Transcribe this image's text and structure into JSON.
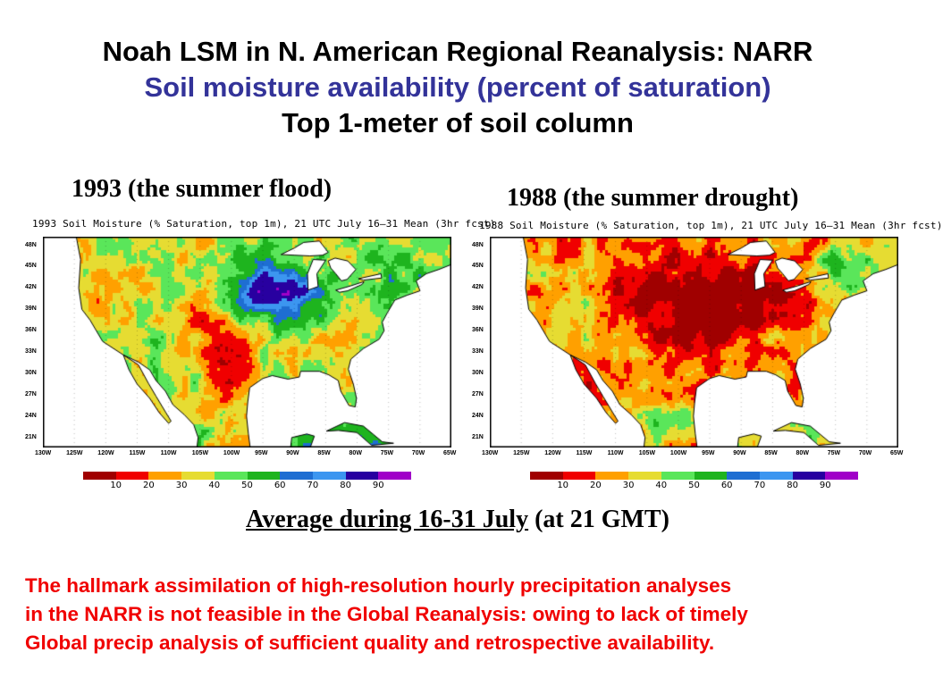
{
  "slide": {
    "title_line1": "Noah LSM in N. American Regional Reanalysis: NARR",
    "title_line2": "Soil moisture availability (percent of saturation)",
    "title_line3": "Top 1-meter of soil column",
    "title_line2_color": "#333399",
    "average_label": "Average during 16-31 July",
    "average_suffix": " (at 21 GMT)",
    "note_lines": [
      "The hallmark assimilation of high-resolution hourly precipitation analyses",
      "in the NARR is not feasible in the Global Reanalysis: owing to lack of timely",
      "Global precip analysis of sufficient quality and retrospective availability."
    ],
    "note_color": "#f00000"
  },
  "maps": [
    {
      "caption": "1993 (the summer flood)",
      "title": "1993 Soil Moisture (% Saturation, top 1m), 21 UTC July 16–31 Mean (3hr fcst)",
      "scenario": "flood"
    },
    {
      "caption": "1988 (the summer drought)",
      "title": "1988 Soil Moisture (% Saturation, top 1m), 21 UTC July 16–31 Mean (3hr fcst)",
      "scenario": "drought"
    }
  ],
  "axes": {
    "lat_ticks": [
      "48N",
      "45N",
      "42N",
      "39N",
      "36N",
      "33N",
      "30N",
      "27N",
      "24N",
      "21N"
    ],
    "lon_ticks": [
      "130W",
      "125W",
      "120W",
      "115W",
      "110W",
      "105W",
      "100W",
      "95W",
      "90W",
      "85W",
      "80W",
      "75W",
      "70W",
      "65W"
    ],
    "lat_range": [
      20,
      49
    ],
    "lon_range": [
      -130,
      -65
    ]
  },
  "colorbar": {
    "labels": [
      "10",
      "20",
      "30",
      "40",
      "50",
      "60",
      "70",
      "80",
      "90"
    ],
    "colors": [
      "#a00000",
      "#f00000",
      "#ffa000",
      "#e6dc32",
      "#5ae65a",
      "#1eb41e",
      "#1e6ed2",
      "#3c96f0",
      "#2800a0",
      "#a000c8"
    ]
  }
}
